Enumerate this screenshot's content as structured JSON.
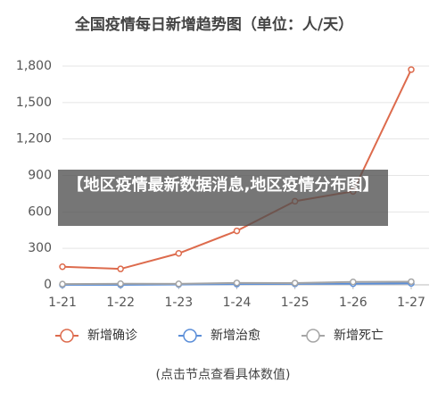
{
  "chart_data": {
    "type": "line",
    "title": "全国疫情每日新增趋势图（单位：人/天）",
    "categories": [
      "1-21",
      "1-22",
      "1-23",
      "1-24",
      "1-25",
      "1-26",
      "1-27"
    ],
    "series": [
      {
        "name": "新增确诊",
        "color": "#dd6b4d",
        "values": [
          149,
          131,
          259,
          444,
          688,
          769,
          1771
        ]
      },
      {
        "name": "新增治愈",
        "color": "#5b8ed8",
        "values": [
          0,
          0,
          3,
          6,
          8,
          9,
          12
        ]
      },
      {
        "name": "新增死亡",
        "color": "#a5a5a5",
        "values": [
          6,
          9,
          8,
          16,
          15,
          24,
          26
        ]
      }
    ],
    "ylim": [
      0,
      1800
    ],
    "yticks": [
      0,
      300,
      600,
      900,
      {
        "value": 1200,
        "label": "1,200"
      },
      {
        "value": 1500,
        "label": "1,500"
      },
      {
        "value": 1800,
        "label": "1,800"
      }
    ],
    "grid": true,
    "legend": "bottom",
    "footnote": "(点击节点查看具体数值)",
    "overlay_text": "【地区疫情最新数据消息,地区疫情分布图】"
  }
}
